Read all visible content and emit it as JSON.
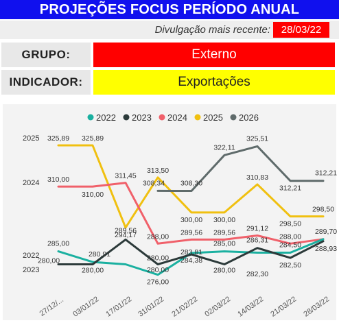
{
  "header": {
    "title": "PROJEÇÕES FOCUS PERÍODO ANUAL",
    "divulgacao_label": "Divulgação mais recente:",
    "divulgacao_date": "28/03/22"
  },
  "filters": {
    "grupo_label": "GRUPO:",
    "grupo_value": "Externo",
    "indicador_label": "INDICADOR:",
    "indicador_value": "Exportações"
  },
  "colors": {
    "2022": "#1ab0a0",
    "2023": "#2c3a3a",
    "2024": "#f0606a",
    "2025": "#f0c010",
    "2026": "#5f6b6b"
  },
  "chart_data": {
    "type": "line",
    "title": "",
    "xlabel": "",
    "ylabel": "",
    "x": [
      "27/12/...",
      "03/01/22",
      "17/01/22",
      "31/01/22",
      "21/02/22",
      "02/03/22",
      "14/03/22",
      "21/03/22",
      "28/03/22"
    ],
    "ylim": [
      273,
      328
    ],
    "legend_position": "top-center",
    "grid": false,
    "left_labels": [
      "2025",
      "2024",
      "2022",
      "2023"
    ],
    "series": [
      {
        "name": "2022",
        "values": [
          285.0,
          280.91,
          280.0,
          276.0,
          284.38,
          285.0,
          284.5,
          284.5,
          289.7
        ],
        "labels": [
          "285,00",
          "280,91",
          "",
          "276,00",
          "284,38",
          "285,00",
          "",
          "284,50",
          "289,70"
        ]
      },
      {
        "name": "2023",
        "values": [
          280.0,
          280.0,
          289.56,
          280.0,
          283.81,
          280.0,
          286.31,
          282.5,
          288.93
        ],
        "labels": [
          "280,00",
          "280,00",
          "289,56",
          "280,00",
          "283,81",
          "280,00",
          "286,31",
          "282,50",
          "288,93"
        ],
        "extra_labels": [
          "280,00",
          "282,30"
        ]
      },
      {
        "name": "2024",
        "values": [
          310.0,
          310.0,
          311.45,
          288.0,
          289.56,
          289.56,
          291.12,
          288.0,
          289.7
        ],
        "labels": [
          "310,00",
          "310,00",
          "311,45",
          "288,00",
          "289,56",
          "289,56",
          "291,12",
          "288,00",
          ""
        ]
      },
      {
        "name": "2025",
        "values": [
          325.89,
          325.89,
          294.17,
          313.5,
          300.0,
          300.0,
          310.83,
          298.5,
          298.5
        ],
        "labels": [
          "325,89",
          "325,89",
          "294,17",
          "313,50",
          "300,00",
          "300,00",
          "310,83",
          "298,50",
          "298,50"
        ]
      },
      {
        "name": "2026",
        "values": [
          null,
          null,
          null,
          308.34,
          308.3,
          322.11,
          325.51,
          312.21,
          312.21
        ],
        "labels": [
          "",
          "",
          "",
          "308,34",
          "308,30",
          "322,11",
          "325,51",
          "312,21",
          "312,21"
        ]
      }
    ]
  }
}
